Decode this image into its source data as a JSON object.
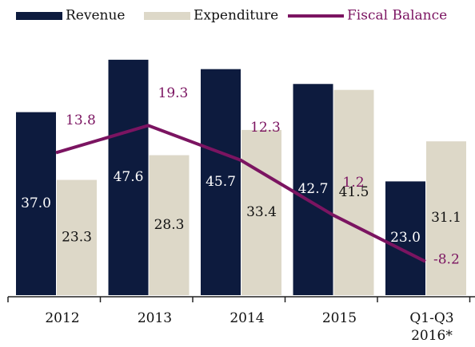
{
  "chart_data": {
    "type": "bar",
    "categories": [
      "2012",
      "2013",
      "2014",
      "2015",
      "Q1-Q3 2016*"
    ],
    "series": [
      {
        "name": "Revenue",
        "color": "#0d1b3e",
        "values": [
          37.0,
          47.6,
          45.7,
          42.7,
          23.0
        ],
        "value_labels": [
          "37.0",
          "47.6",
          "45.7",
          "42.7",
          "23.0"
        ]
      },
      {
        "name": "Expenditure",
        "color": "#ddd8c8",
        "values": [
          23.3,
          28.3,
          33.4,
          41.5,
          31.1
        ]
      },
      {
        "name": "Fiscal Balance",
        "type": "line",
        "axis": "y2",
        "color": "#7b1461",
        "values": [
          13.8,
          19.3,
          12.3,
          1.2,
          -8.2
        ]
      }
    ],
    "ylim": [
      0,
      50
    ],
    "y2lim": [
      -15,
      35
    ]
  }
}
